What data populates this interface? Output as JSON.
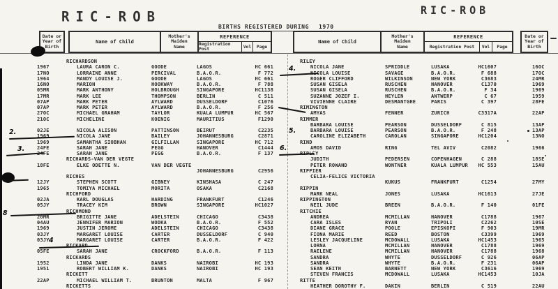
{
  "page": {
    "stamp_left": "RIC-ROB",
    "stamp_right": "RIC-ROB",
    "title": "BIRTHS REGISTERED DURING",
    "year": "1970",
    "colors": {
      "paper": "#f5f4ef",
      "ink": "#262626",
      "pen": "#0c0c0c"
    }
  },
  "header": {
    "date_box": [
      "Date or",
      "Year of",
      "Birth"
    ],
    "name_of_child": "Name of Child",
    "maiden_box": [
      "Mother's",
      "Maiden",
      "Name"
    ],
    "reference": "REFERENCE",
    "registration_post": "Registration Post",
    "vol": "Vol",
    "page": "Page"
  },
  "left_table": {
    "rows": [
      {
        "t": "s",
        "n": "RICHARDSON"
      },
      {
        "t": "e",
        "d": "1967",
        "n": "LAURA CARON C.",
        "m": "GOODE",
        "p": "LAGOS",
        "v": "HC 661"
      },
      {
        "t": "e",
        "d": "17NO",
        "n": "LORRAINE ANNE",
        "m": "PERCIVAL",
        "p": "B.A.O.R.",
        "v": "F 772"
      },
      {
        "t": "e",
        "d": "1964",
        "n": "MANDY LOUISE J.",
        "m": "GOODE",
        "p": "LAGOS",
        "v": "HC 661"
      },
      {
        "t": "e",
        "d": "16NO",
        "n": "MARION",
        "m": "HOOKWAY",
        "p": "B.A.O.R.",
        "v": "F 788"
      },
      {
        "t": "e",
        "d": "05MR",
        "n": "MARK ANTHONY",
        "m": "HOLBROUGH",
        "p": "SINGAPORE",
        "v": "HC1138"
      },
      {
        "t": "e",
        "d": "17MR",
        "n": "MARK LEE",
        "m": "THOMPSON",
        "p": "BERLIN",
        "v": "C 511"
      },
      {
        "t": "e",
        "d": "07AP",
        "n": "MARK PETER",
        "m": "AYLWARD",
        "p": "DUSSELDORF",
        "v": "C1076"
      },
      {
        "t": "e",
        "d": "07AP",
        "n": "MARK PETER",
        "m": "AYLWARD",
        "p": "B.A.O.R.",
        "v": "F 256"
      },
      {
        "t": "e",
        "d": "27OC",
        "n": "MICHAEL GRAHAM",
        "m": "TAYLOR",
        "p": "KUALA LUMPUR",
        "v": "HC 567"
      },
      {
        "t": "e",
        "d": "21OC",
        "n": "MICHELINE",
        "m": "KOENIG",
        "p": "MAURITIUS",
        "v": "F1290"
      },
      {
        "t": "b"
      },
      {
        "t": "e",
        "d": "02JE",
        "n": "NICOLA ALISON",
        "m": "PATTINSON",
        "p": "BEIRUT",
        "v": "C2235"
      },
      {
        "t": "e",
        "d": "1969",
        "n": "NICOLA JANE",
        "m": "BAILEY",
        "p": "JOHANNESBURG",
        "v": "C2871"
      },
      {
        "t": "e",
        "d": "1969",
        "n": "SAMANTHA SIOBHAN",
        "m": "GILFILLAN",
        "p": "SINGAPORE",
        "v": "HC 712"
      },
      {
        "t": "e",
        "d": "24FE",
        "n": "SARAH JANE",
        "m": "PEGG",
        "p": "HANOVER",
        "v": "C1444"
      },
      {
        "t": "e",
        "d": "24FE",
        "n": "SARAH JANE",
        "m": "PEGG",
        "p": "B.A.O.R.",
        "v": "F 137"
      },
      {
        "t": "s",
        "n": "RICHARDS-VAN DER VEGTE"
      },
      {
        "t": "e",
        "d": "18FE",
        "n": "ELKE ODETTE N.",
        "m": "VAN DER VEGTE",
        "p": "",
        "v": ""
      },
      {
        "t": "e",
        "d": "",
        "n": "",
        "m": "",
        "p": "JOHANNESBURG",
        "v": "C2956"
      },
      {
        "t": "s",
        "n": "RICHES"
      },
      {
        "t": "e",
        "d": "12JY",
        "n": "STEPHEN SCOTT",
        "m": "GIBNEY",
        "p": "KINSHASA",
        "v": "C 247"
      },
      {
        "t": "e",
        "d": "1965",
        "n": "TOMIYA MICHAEL",
        "m": "MORITA",
        "p": "OSAKA",
        "v": "C2168"
      },
      {
        "t": "s",
        "n": "RICHFORD"
      },
      {
        "t": "e",
        "d": "02JA",
        "n": "KARL DOUGLAS",
        "m": "HARDING",
        "p": "FRANKFURT",
        "v": "C1246"
      },
      {
        "t": "e",
        "d": "05JY",
        "n": "TRACEY KIM",
        "m": "BROWN",
        "p": "SINGAPORE",
        "v": "HC1027"
      },
      {
        "t": "s",
        "n": "RICHMOND"
      },
      {
        "t": "e",
        "d": "20MR",
        "n": "BRIGITTE JANE",
        "m": "ADELSTEIN",
        "p": "CHICAGO",
        "v": "C3438"
      },
      {
        "t": "e",
        "d": "04AU",
        "n": "JENNIFER MARION",
        "m": "WODKA",
        "p": "B.A.O.R.",
        "v": "F 552"
      },
      {
        "t": "e",
        "d": "1969",
        "n": "JUSTIN JEROME",
        "m": "ADELSTEIN",
        "p": "CHICAGO",
        "v": "C3438"
      },
      {
        "t": "e",
        "d": "03JY",
        "n": "MARGARET LOUISE",
        "m": "CARTER",
        "p": "DUSSELDORF",
        "v": "C 940"
      },
      {
        "t": "e",
        "d": "03JY",
        "n": "MARGARET LOUISE",
        "m": "CARTER",
        "p": "B.A.O.R.",
        "v": "F 422"
      },
      {
        "t": "s",
        "n": "RICKARD"
      },
      {
        "t": "e",
        "d": "05FE",
        "n": "SARAH JANE",
        "m": "CROCKFORD",
        "p": "B.A.O.R.",
        "v": "F 113"
      },
      {
        "t": "s",
        "n": "RICKARDS"
      },
      {
        "t": "e",
        "d": "1952",
        "n": "LINDA JANE",
        "m": "DANKS",
        "p": "NAIROBI",
        "v": "HC 193"
      },
      {
        "t": "e",
        "d": "1951",
        "n": "ROBERT WILLIAM K.",
        "m": "DANKS",
        "p": "NAIROBI",
        "v": "HC 193"
      },
      {
        "t": "s",
        "n": "RICKETT"
      },
      {
        "t": "e",
        "d": "22AP",
        "n": "MICHAEL WILLIAM T.",
        "m": "BRUNTON",
        "p": "MALTA",
        "v": "F 967"
      },
      {
        "t": "s",
        "n": "RICKETTS"
      }
    ]
  },
  "right_table": {
    "rows": [
      {
        "t": "s",
        "n": "RILEY"
      },
      {
        "t": "e",
        "n": "NICOLA JANE",
        "m": "SPRIDDLE",
        "p": "LUSAKA",
        "v": "HC1607",
        "d": "16OC"
      },
      {
        "t": "e",
        "n": "NICOLA LOUISE",
        "m": "SAVAGE",
        "p": "B.A.O.R.",
        "v": "F 688",
        "d": "17OC"
      },
      {
        "t": "e",
        "n": "ROGER CLIFFORD",
        "m": "WILKINSON",
        "p": "NEW YORK",
        "v": "C3683",
        "d": "24MR"
      },
      {
        "t": "e",
        "n": "SUSAN GISELA",
        "m": "RUSCHEN",
        "p": "HANOVER",
        "v": "C1370",
        "d": "1969"
      },
      {
        "t": "e",
        "n": "SUSAN GISELA",
        "m": "RUSCHEN",
        "p": "B.A.O.R.",
        "v": "F 34",
        "d": "1969"
      },
      {
        "t": "e",
        "n": "SUZANNE JOZEF I.",
        "m": "HEYLEN",
        "p": "ANTWERP",
        "v": "C 67",
        "d": "1959"
      },
      {
        "t": "e",
        "n": "VIVIENNE CLAIRE",
        "m": "DESMANTGHE",
        "p": "PARIS",
        "v": "C 397",
        "d": "28FE"
      },
      {
        "t": "s",
        "n": "RIMINGTON"
      },
      {
        "t": "e",
        "n": "AMYAS",
        "m": "FENNER",
        "p": "ZURICH",
        "v": "C3317A",
        "d": "22AP"
      },
      {
        "t": "s",
        "n": "RIMMER"
      },
      {
        "t": "e",
        "n": "BARBARA LOUISE",
        "m": "PEARSON",
        "p": "DUSSELDORF",
        "v": "C 815",
        "d": "13AP"
      },
      {
        "t": "e",
        "n": "BARBARA LOUISE",
        "m": "PEARSON",
        "p": "B.A.O.R.",
        "v": "F 248",
        "d": "13AP"
      },
      {
        "t": "e",
        "n": "CAROLINE ELIZABETH",
        "m": "CAROLAN",
        "p": "SINGAPORE",
        "v": "HC1204",
        "d": "13NO"
      },
      {
        "t": "s",
        "n": "RIND"
      },
      {
        "t": "e",
        "n": "AMOS DAVID",
        "m": "RING",
        "p": "TEL AVIV",
        "v": "C2082",
        "d": "1966"
      },
      {
        "t": "s",
        "n": "RIPLEY"
      },
      {
        "t": "e",
        "n": "JUDITH",
        "m": "PEDERSEN",
        "p": "COPENHAGEN",
        "v": "C 288",
        "d": "18SE"
      },
      {
        "t": "e",
        "n": "PETER ROWAND",
        "m": "WONTNER",
        "p": "KUALA LUMPUR",
        "v": "HC 553",
        "d": "15AU"
      },
      {
        "t": "s",
        "n": "RIPPIER"
      },
      {
        "t": "e",
        "n": "CELIA-FELICE VICTORIA",
        "m": "",
        "p": "",
        "v": "",
        "d": ""
      },
      {
        "t": "e",
        "n": "",
        "m": "KUKUS",
        "p": "FRANKFURT",
        "v": "C1254",
        "d": "27MY"
      },
      {
        "t": "s",
        "n": "RIPPIN"
      },
      {
        "t": "e",
        "n": "MARK NEAL",
        "m": "JONES",
        "p": "LUSAKA",
        "v": "HC1613",
        "d": "27JE"
      },
      {
        "t": "s",
        "n": "RIPPINGTON"
      },
      {
        "t": "e",
        "n": "NEIL JUDE",
        "m": "BREEN",
        "p": "B.A.O.R.",
        "v": "F 140",
        "d": "01FE"
      },
      {
        "t": "s",
        "n": "RITCHIE"
      },
      {
        "t": "e",
        "n": "ANDREA",
        "m": "MCMILLAN",
        "p": "HANOVER",
        "v": "C1788",
        "d": "1967"
      },
      {
        "t": "e",
        "n": "CARA ISLES",
        "m": "RYAN",
        "p": "TRIPOLI",
        "v": "C2262",
        "d": "10SE"
      },
      {
        "t": "e",
        "n": "DIANE GRACE",
        "m": "POOLE",
        "p": "EPISKOPI",
        "v": "F 903",
        "d": "19MR"
      },
      {
        "t": "e",
        "n": "FIONA MARIE",
        "m": "REED",
        "p": "BOSTON",
        "v": "C3399",
        "d": "1969"
      },
      {
        "t": "e",
        "n": "LESLEY JACQUELINE",
        "m": "MCDOWALL",
        "p": "LUSAKA",
        "v": "HC1453",
        "d": "1965"
      },
      {
        "t": "e",
        "n": "LORNA",
        "m": "MCMILLAN",
        "p": "HANOVER",
        "v": "C1788",
        "d": "1969"
      },
      {
        "t": "e",
        "n": "RAELENE",
        "m": "MCMILLAN",
        "p": "HANOVER",
        "v": "C1788",
        "d": "1968"
      },
      {
        "t": "e",
        "n": "SANDRA",
        "m": "WHYTE",
        "p": "DUSSELDORF",
        "v": "C 926",
        "d": "06AP"
      },
      {
        "t": "e",
        "n": "SANDRA",
        "m": "WHYTE",
        "p": "B.A.O.R.",
        "v": "F 231",
        "d": "06AP"
      },
      {
        "t": "e",
        "n": "SEAN KEITH",
        "m": "BARNETT",
        "p": "NEW YORK",
        "v": "C3616",
        "d": "1969"
      },
      {
        "t": "e",
        "n": "STEVEN FRANCIS",
        "m": "MCDOWALL",
        "p": "LUSAKA",
        "v": "HC1453",
        "d": "10JA"
      },
      {
        "t": "s",
        "n": "RITTE"
      },
      {
        "t": "e",
        "n": "HEATHER DOROTHY F.",
        "m": "DAKIN",
        "p": "BERLIN",
        "v": "C 519",
        "d": "22AU"
      }
    ]
  },
  "annotations": {
    "marks": [
      {
        "label": "2."
      },
      {
        "label": "3."
      },
      {
        "label": "8"
      },
      {
        "label": "4"
      },
      {
        "label": "4."
      },
      {
        "label": "5."
      },
      {
        "label": "6."
      }
    ]
  }
}
